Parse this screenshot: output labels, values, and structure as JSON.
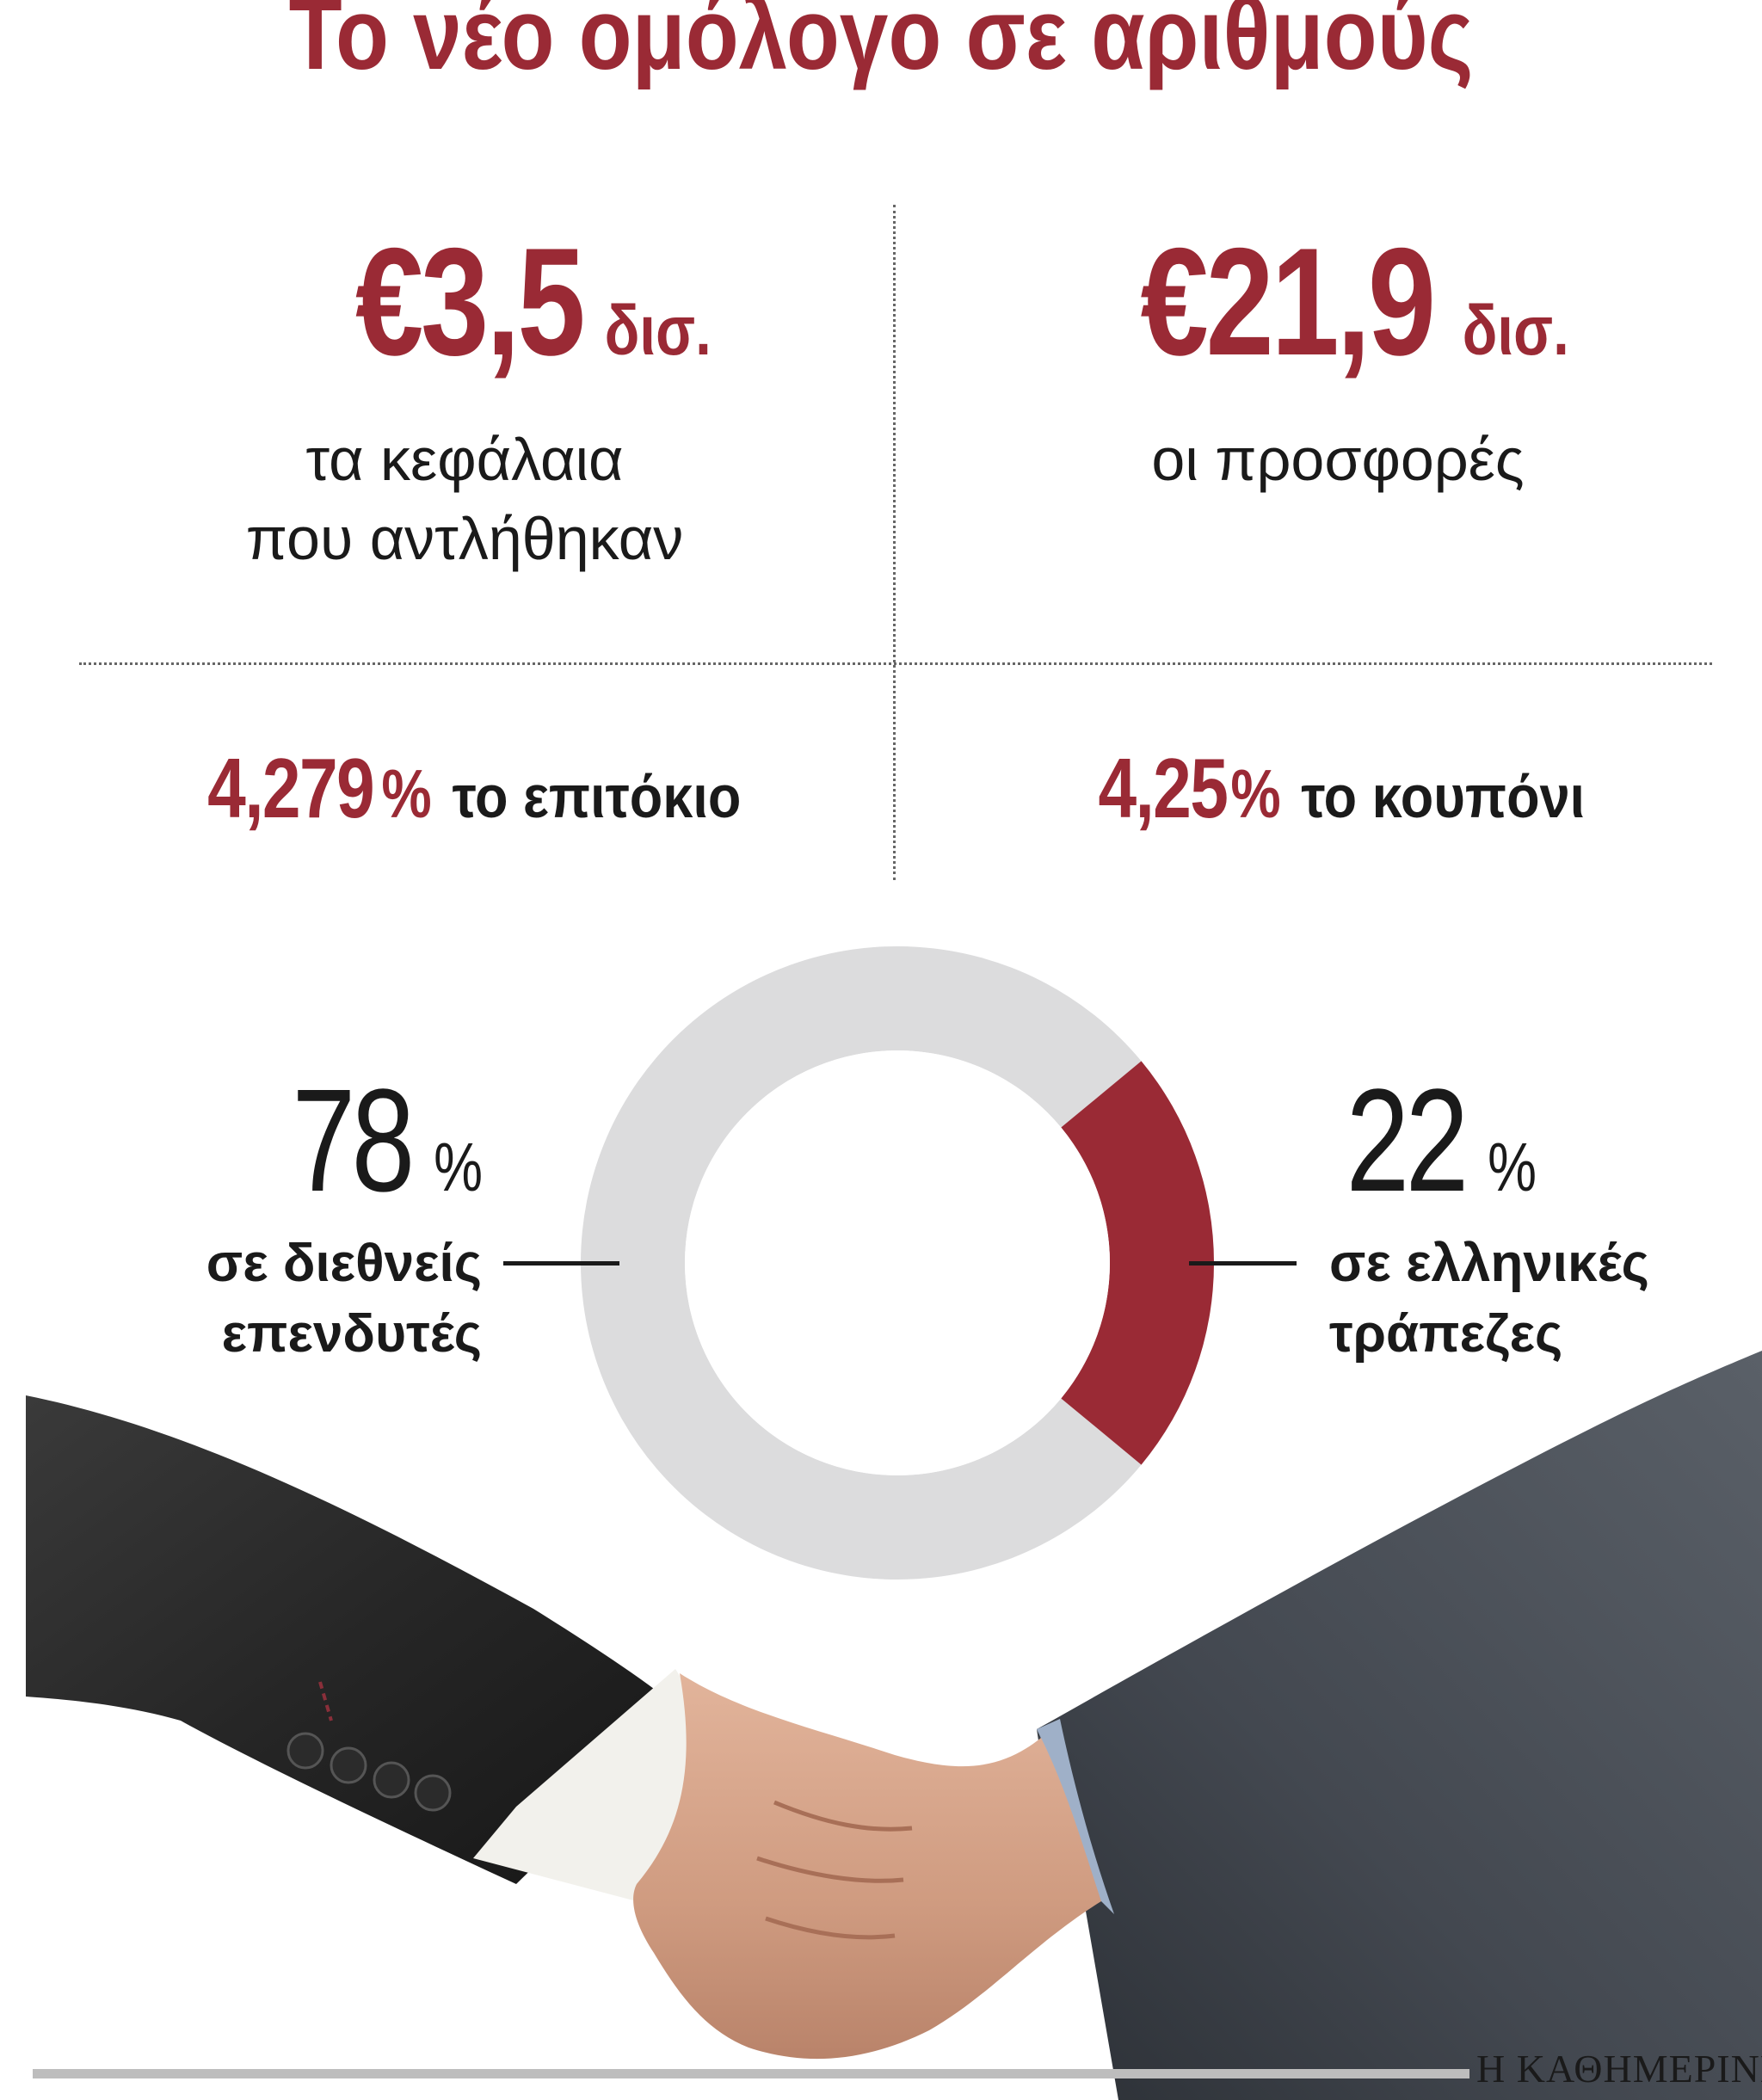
{
  "title": "Το νέο ομόλογο σε αριθμούς",
  "stats": {
    "funds": {
      "value": "€3,5",
      "unit": "δισ.",
      "line1": "τα κεφάλαια",
      "line2": "που αντλήθηκαν"
    },
    "offers": {
      "value": "€21,9",
      "unit": "δισ.",
      "line1": "οι προσφορές"
    },
    "yield": {
      "value": "4,279",
      "pct": "%",
      "label": "το επιτόκιο"
    },
    "coupon": {
      "value": "4,25",
      "pct": "%",
      "label": "το κουπόνι"
    }
  },
  "chart_data": {
    "type": "pie",
    "style": "donut",
    "slices": [
      {
        "label_line1": "σε διεθνείς",
        "label_line2": "επενδυτές",
        "value": 78,
        "value_text": "78",
        "color": "#dcdcdd"
      },
      {
        "label_line1": "σε ελληνικές",
        "label_line2": "τράπεζες",
        "value": 22,
        "value_text": "22",
        "color": "#9a2a35"
      }
    ],
    "unit": "%"
  },
  "credit": "Η ΚΑΘΗΜΕΡΙΝΗ",
  "colors": {
    "accent": "#9a2a35",
    "ring": "#dcdcdd",
    "text": "#1a1a1a"
  }
}
